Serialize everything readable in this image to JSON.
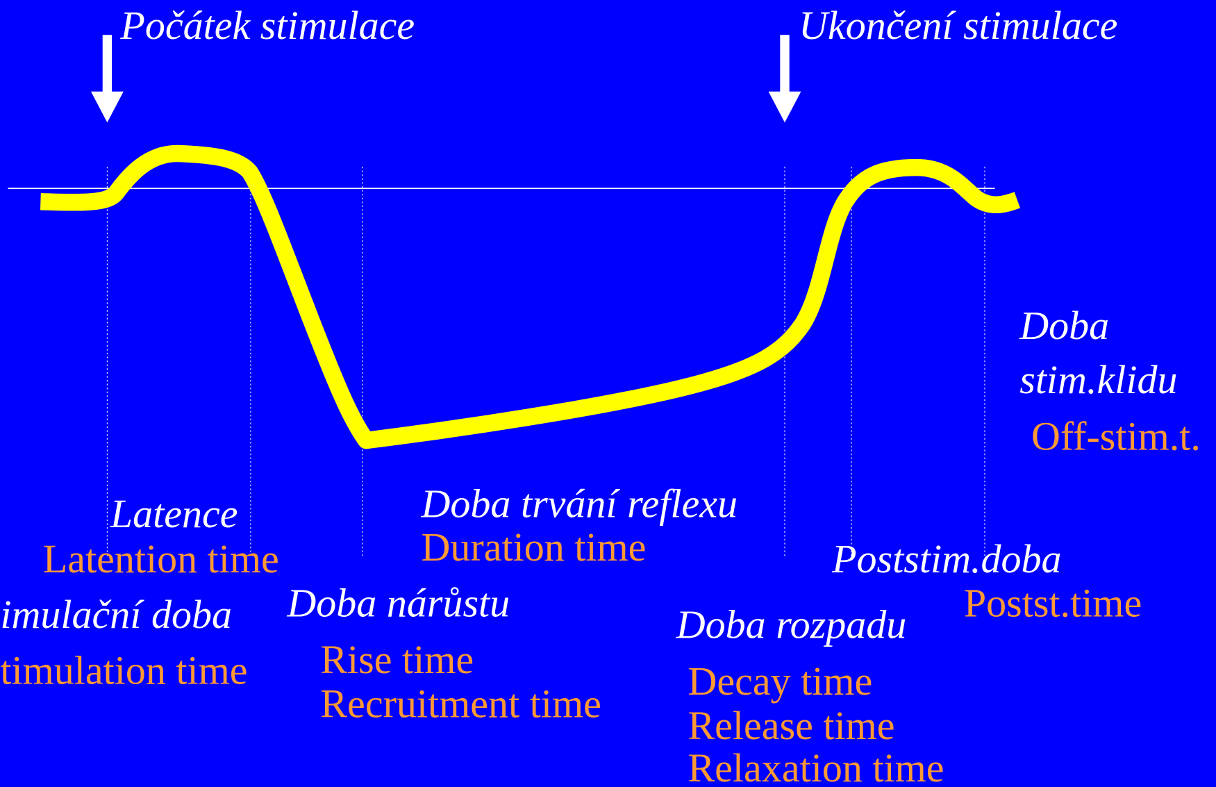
{
  "markers": {
    "start": "Počátek stimulace",
    "end": "Ukončení stimulace"
  },
  "phases": {
    "latency": {
      "cz": "Latence",
      "en": "Latention time"
    },
    "stimulation": {
      "cz": "imulační doba",
      "en": "timulation time"
    },
    "rise": {
      "cz": "Doba nárůstu",
      "en": [
        "Rise time",
        "Recruitment time"
      ]
    },
    "duration": {
      "cz": "Doba trvání reflexu",
      "en": "Duration time"
    },
    "decay": {
      "cz": "Doba rozpadu",
      "en": [
        "Decay time",
        "Release time",
        "Relaxation time"
      ]
    },
    "poststim": {
      "cz": "Poststim.doba",
      "en": "Postst.time"
    },
    "offstim": {
      "cz": [
        "Doba",
        "stim.klidu"
      ],
      "en": "Off-stim.t."
    }
  }
}
